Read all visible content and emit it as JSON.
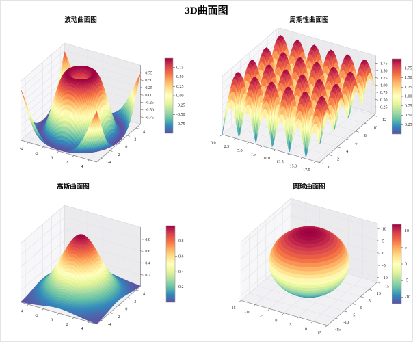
{
  "figure": {
    "title": "3D曲面图"
  },
  "colormap": {
    "name": "Spectral_r",
    "stops": [
      "#5e4fa2",
      "#3288bd",
      "#66c2a5",
      "#abdda4",
      "#e6f598",
      "#ffffbf",
      "#fee08b",
      "#fdae61",
      "#f46d43",
      "#d53e4f",
      "#9e0142"
    ]
  },
  "chart_data": [
    {
      "type": "surface3d",
      "id": "wave",
      "title": "波动曲面图",
      "function": "z = sin(sqrt(x² + y²))",
      "x_range": [
        -5,
        5
      ],
      "y_range": [
        -5,
        5
      ],
      "z_range": [
        -1,
        1
      ],
      "color_range": [
        -1,
        1
      ],
      "grid": [
        60,
        60
      ],
      "x_ticks": [
        "-4",
        "-2",
        "0",
        "2",
        "4"
      ],
      "y_ticks": [
        "-4",
        "-2",
        "0",
        "2",
        "4"
      ],
      "z_ticks": [
        "-0.75",
        "-0.50",
        "-0.25",
        "0.00",
        "0.25",
        "0.50",
        "0.75"
      ],
      "colorbar_ticks": [
        "-0.75",
        "-0.50",
        "-0.25",
        "0.00",
        "0.25",
        "0.50",
        "0.75"
      ]
    },
    {
      "type": "surface3d",
      "id": "periodic",
      "title": "周期性曲面图",
      "function": "z = |sin(x)| + |sin(y)|",
      "x_range": [
        0,
        18.2
      ],
      "y_range": [
        0,
        12.4
      ],
      "z_range": [
        0,
        2
      ],
      "color_range": [
        0,
        2
      ],
      "grid": [
        72,
        48
      ],
      "x_ticks": [
        "0.0",
        "2.5",
        "5.0",
        "7.5",
        "10.0",
        "12.5",
        "15.0",
        "17.5"
      ],
      "y_ticks": [
        "0",
        "2",
        "4",
        "6",
        "8",
        "10",
        "12"
      ],
      "z_ticks": [
        "0.25",
        "0.50",
        "0.75",
        "1.00",
        "1.25",
        "1.50",
        "1.75"
      ],
      "colorbar_ticks": [
        "0.25",
        "0.50",
        "0.75",
        "1.00",
        "1.25",
        "1.50",
        "1.75"
      ]
    },
    {
      "type": "surface3d",
      "id": "gaussian",
      "title": "高斯曲面图",
      "function": "z = exp(-(x² + y²) / 10)",
      "x_range": [
        -5,
        5
      ],
      "y_range": [
        -5,
        5
      ],
      "z_range": [
        0,
        1
      ],
      "color_range": [
        0,
        1
      ],
      "grid": [
        52,
        52
      ],
      "x_ticks": [
        "-4",
        "-2",
        "0",
        "2",
        "4"
      ],
      "y_ticks": [
        "-4",
        "-2",
        "0",
        "2",
        "4"
      ],
      "z_ticks": [
        "0.2",
        "0.4",
        "0.6",
        "0.8"
      ],
      "colorbar_ticks": [
        "0.2",
        "0.4",
        "0.6",
        "0.8"
      ]
    },
    {
      "type": "surface3d",
      "id": "sphere",
      "title": "圆球曲面图",
      "function": "x² + y² + z² = 12²",
      "radius": 12,
      "x_range": [
        -15,
        15
      ],
      "y_range": [
        -15,
        15
      ],
      "z_range": [
        -12,
        12
      ],
      "color_range": [
        -12,
        12
      ],
      "grid": [
        48,
        28
      ],
      "x_ticks": [
        "-15",
        "-10",
        "-5",
        "0",
        "5",
        "10",
        "15"
      ],
      "y_ticks": [
        "-15",
        "-10",
        "-5",
        "0",
        "5",
        "10",
        "15"
      ],
      "z_ticks": [
        "-10",
        "-5",
        "0",
        "5",
        "10"
      ],
      "colorbar_ticks": [
        "-10",
        "-5",
        "0",
        "5",
        "10"
      ]
    }
  ]
}
